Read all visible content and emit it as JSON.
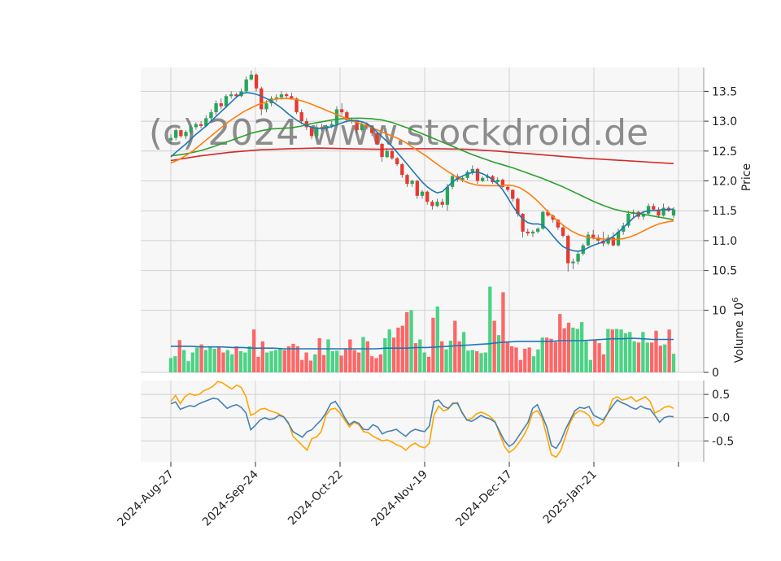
{
  "chart_data": {
    "type": "candlestick",
    "watermark": "(c) 2024 www.stockdroid.de",
    "x_tick_labels": [
      "2024-Aug-27",
      "2024-Sep-24",
      "2024-Oct-22",
      "2024-Nov-19",
      "2024-Dec-17",
      "2025-Jan-21"
    ],
    "price_panel": {
      "ylabel": "Price",
      "yticks": [
        "10.5",
        "11.0",
        "11.5",
        "12.0",
        "12.5",
        "13.0",
        "13.5"
      ],
      "ylim": [
        10.25,
        13.9
      ],
      "candles_ohlc": [
        [
          12.68,
          12.78,
          12.62,
          12.72
        ],
        [
          12.72,
          12.88,
          12.68,
          12.85
        ],
        [
          12.85,
          12.86,
          12.72,
          12.75
        ],
        [
          12.75,
          12.85,
          12.7,
          12.82
        ],
        [
          12.82,
          12.92,
          12.78,
          12.9
        ],
        [
          12.9,
          12.98,
          12.86,
          12.95
        ],
        [
          12.95,
          13.0,
          12.88,
          12.92
        ],
        [
          12.92,
          13.1,
          12.9,
          13.05
        ],
        [
          13.05,
          13.2,
          13.0,
          13.15
        ],
        [
          13.15,
          13.35,
          13.1,
          13.3
        ],
        [
          13.3,
          13.38,
          13.2,
          13.25
        ],
        [
          13.25,
          13.45,
          13.22,
          13.42
        ],
        [
          13.42,
          13.5,
          13.38,
          13.45
        ],
        [
          13.45,
          13.48,
          13.38,
          13.42
        ],
        [
          13.42,
          13.55,
          13.4,
          13.5
        ],
        [
          13.5,
          13.75,
          13.48,
          13.7
        ],
        [
          13.7,
          13.85,
          13.68,
          13.78
        ],
        [
          13.78,
          13.8,
          13.5,
          13.55
        ],
        [
          13.55,
          13.58,
          13.1,
          13.2
        ],
        [
          13.2,
          13.35,
          13.15,
          13.3
        ],
        [
          13.3,
          13.42,
          13.25,
          13.38
        ],
        [
          13.38,
          13.45,
          13.32,
          13.4
        ],
        [
          13.4,
          13.5,
          13.36,
          13.45
        ],
        [
          13.45,
          13.48,
          13.38,
          13.42
        ],
        [
          13.42,
          13.48,
          13.36,
          13.38
        ],
        [
          13.38,
          13.4,
          13.12,
          13.15
        ],
        [
          13.15,
          13.2,
          12.95,
          13.0
        ],
        [
          13.0,
          13.05,
          12.85,
          12.9
        ],
        [
          12.9,
          12.92,
          12.7,
          12.75
        ],
        [
          12.75,
          12.95,
          12.72,
          12.9
        ],
        [
          12.9,
          12.96,
          12.84,
          12.88
        ],
        [
          12.88,
          12.94,
          12.84,
          12.92
        ],
        [
          12.92,
          13.0,
          12.88,
          12.95
        ],
        [
          12.95,
          13.25,
          12.92,
          13.2
        ],
        [
          13.2,
          13.3,
          13.1,
          13.15
        ],
        [
          13.15,
          13.18,
          12.98,
          13.02
        ],
        [
          13.02,
          13.06,
          12.96,
          13.0
        ],
        [
          13.0,
          13.02,
          12.8,
          12.85
        ],
        [
          12.85,
          13.0,
          12.82,
          12.95
        ],
        [
          12.95,
          12.98,
          12.86,
          12.9
        ],
        [
          12.9,
          12.92,
          12.75,
          12.8
        ],
        [
          12.8,
          12.82,
          12.6,
          12.62
        ],
        [
          12.62,
          12.64,
          12.32,
          12.4
        ],
        [
          12.4,
          12.55,
          12.38,
          12.5
        ],
        [
          12.5,
          12.52,
          12.35,
          12.38
        ],
        [
          12.38,
          12.4,
          12.25,
          12.28
        ],
        [
          12.28,
          12.3,
          12.05,
          12.1
        ],
        [
          12.1,
          12.12,
          11.9,
          11.95
        ],
        [
          11.95,
          12.02,
          11.9,
          12.0
        ],
        [
          12.0,
          12.02,
          11.7,
          11.75
        ],
        [
          11.75,
          11.85,
          11.7,
          11.82
        ],
        [
          11.82,
          11.84,
          11.6,
          11.65
        ],
        [
          11.65,
          11.68,
          11.52,
          11.58
        ],
        [
          11.58,
          11.7,
          11.56,
          11.65
        ],
        [
          11.65,
          11.7,
          11.55,
          11.6
        ],
        [
          11.6,
          11.95,
          11.5,
          11.9
        ],
        [
          11.9,
          12.12,
          11.86,
          12.08
        ],
        [
          12.08,
          12.12,
          11.98,
          12.02
        ],
        [
          12.02,
          12.08,
          11.98,
          12.05
        ],
        [
          12.05,
          12.18,
          12.02,
          12.15
        ],
        [
          12.15,
          12.26,
          12.1,
          12.2
        ],
        [
          12.2,
          12.22,
          11.95,
          12.0
        ],
        [
          12.0,
          12.08,
          11.98,
          12.05
        ],
        [
          12.05,
          12.12,
          12.0,
          12.08
        ],
        [
          12.08,
          12.1,
          11.95,
          11.98
        ],
        [
          11.98,
          12.06,
          11.94,
          12.02
        ],
        [
          12.02,
          12.04,
          11.88,
          11.9
        ],
        [
          11.9,
          11.92,
          11.82,
          11.85
        ],
        [
          11.85,
          11.86,
          11.65,
          11.7
        ],
        [
          11.7,
          11.72,
          11.4,
          11.45
        ],
        [
          11.45,
          11.46,
          11.05,
          11.15
        ],
        [
          11.15,
          11.2,
          11.08,
          11.12
        ],
        [
          11.12,
          11.18,
          11.06,
          11.15
        ],
        [
          11.15,
          11.22,
          11.12,
          11.2
        ],
        [
          11.2,
          11.5,
          11.18,
          11.48
        ],
        [
          11.48,
          11.52,
          11.4,
          11.42
        ],
        [
          11.42,
          11.44,
          11.3,
          11.35
        ],
        [
          11.35,
          11.36,
          11.18,
          11.22
        ],
        [
          11.22,
          11.24,
          11.05,
          11.08
        ],
        [
          11.08,
          11.1,
          10.48,
          10.62
        ],
        [
          10.62,
          10.7,
          10.52,
          10.65
        ],
        [
          10.65,
          10.82,
          10.6,
          10.78
        ],
        [
          10.78,
          10.95,
          10.75,
          10.92
        ],
        [
          10.92,
          11.15,
          10.9,
          11.1
        ],
        [
          11.1,
          11.18,
          11.02,
          11.05
        ],
        [
          11.05,
          11.1,
          10.95,
          11.0
        ],
        [
          11.0,
          11.15,
          10.9,
          10.95
        ],
        [
          10.95,
          11.1,
          10.92,
          11.05
        ],
        [
          11.05,
          11.14,
          10.9,
          10.92
        ],
        [
          10.92,
          11.2,
          10.9,
          11.15
        ],
        [
          11.15,
          11.3,
          11.1,
          11.25
        ],
        [
          11.25,
          11.5,
          11.22,
          11.45
        ],
        [
          11.45,
          11.52,
          11.38,
          11.48
        ],
        [
          11.48,
          11.5,
          11.36,
          11.4
        ],
        [
          11.4,
          11.5,
          11.35,
          11.45
        ],
        [
          11.45,
          11.62,
          11.42,
          11.58
        ],
        [
          11.58,
          11.62,
          11.5,
          11.52
        ],
        [
          11.52,
          11.56,
          11.38,
          11.42
        ],
        [
          11.42,
          11.62,
          11.4,
          11.55
        ],
        [
          11.55,
          11.58,
          11.48,
          11.5
        ],
        [
          11.42,
          11.56,
          11.38,
          11.52
        ]
      ],
      "ma_short": [
        12.4,
        12.48,
        12.55,
        12.62,
        12.7,
        12.78,
        12.85,
        12.92,
        13.0,
        13.08,
        13.16,
        13.24,
        13.32,
        13.4,
        13.46,
        13.48,
        13.47,
        13.45,
        13.42,
        13.38,
        13.34,
        13.28,
        13.22,
        13.15,
        13.08,
        13.02,
        12.97,
        12.93,
        12.9,
        12.88,
        12.88,
        12.89,
        12.91,
        12.94,
        12.97,
        13.0,
        13.01,
        13.01,
        12.99,
        12.96,
        12.9,
        12.82,
        12.74,
        12.66,
        12.58,
        12.48,
        12.38,
        12.28,
        12.18,
        12.08,
        11.98,
        11.9,
        11.84,
        11.8,
        11.82,
        11.9,
        11.98,
        12.04,
        12.08,
        12.12,
        12.14,
        12.15,
        12.12,
        12.08,
        12.02,
        11.95,
        11.85,
        11.72,
        11.58,
        11.46,
        11.36,
        11.3,
        11.28,
        11.28,
        11.26,
        11.18,
        11.08,
        10.98,
        10.9,
        10.86,
        10.83,
        10.82,
        10.84,
        10.88,
        10.92,
        10.95,
        10.98,
        11.02,
        11.07,
        11.14,
        11.22,
        11.3,
        11.38,
        11.44,
        11.48,
        11.5,
        11.5,
        11.51,
        11.52,
        11.52,
        11.53
      ],
      "ma_medium": [
        12.3,
        12.35,
        12.42,
        12.5,
        12.6,
        12.7,
        12.8,
        12.9,
        13.0,
        13.08,
        13.16,
        13.22,
        13.28,
        13.32,
        13.36,
        13.38,
        13.38,
        13.37,
        13.34,
        13.3,
        13.25,
        13.2,
        13.15,
        13.1,
        13.05,
        13.0,
        12.96,
        12.92,
        12.87,
        12.82,
        12.77,
        12.72,
        12.66,
        12.58,
        12.5,
        12.42,
        12.33,
        12.24,
        12.16,
        12.08,
        12.01,
        11.96,
        11.93,
        11.92,
        11.92,
        11.92,
        11.93,
        11.92,
        11.88,
        11.8,
        11.7,
        11.58,
        11.45,
        11.34,
        11.24,
        11.16,
        11.1,
        11.06,
        11.04,
        11.03,
        11.02,
        11.02,
        11.03,
        11.06,
        11.11,
        11.17,
        11.23,
        11.28,
        11.31,
        11.33
      ],
      "ma_medium_start_index": 30,
      "ma_long": [
        12.42,
        12.44,
        12.47,
        12.51,
        12.56,
        12.62,
        12.68,
        12.74,
        12.8,
        12.84,
        12.87,
        12.88,
        12.89,
        12.92,
        12.96,
        12.99,
        13.02,
        13.04,
        13.05,
        13.05,
        13.04,
        13.02,
        12.98,
        12.92,
        12.86,
        12.79,
        12.72,
        12.65,
        12.58,
        12.51,
        12.44,
        12.38,
        12.32,
        12.27,
        12.22,
        12.16,
        12.1,
        12.04,
        11.97,
        11.9,
        11.82,
        11.74,
        11.66,
        11.59,
        11.53,
        11.49,
        11.46,
        11.44,
        11.41,
        11.38,
        11.35
      ],
      "ma_long_start_index": 0,
      "ma_longest": [
        12.34,
        12.42,
        12.48,
        12.52,
        12.54,
        12.55,
        12.54,
        12.53,
        12.54,
        12.54,
        12.53,
        12.5,
        12.46,
        12.42,
        12.38,
        12.35,
        12.32,
        12.29
      ],
      "series_colors": {
        "up": "#26a65b",
        "down": "#e8392f",
        "ma_short": "#1f77b4",
        "ma_medium": "#ff7f0e",
        "ma_long": "#2ca02c",
        "ma_longest": "#d62728"
      }
    },
    "volume_panel": {
      "ylabel": "Volume  10^6",
      "ylabel_main": "Volume",
      "ylabel_exp": "6",
      "yticks": [
        "0",
        "10"
      ],
      "ylim": [
        0,
        14
      ],
      "volumes": [
        2.3,
        2.6,
        5.2,
        3.6,
        1.8,
        3.2,
        4.0,
        4.5,
        3.6,
        4.2,
        3.8,
        4.2,
        3.2,
        3.6,
        2.9,
        4.2,
        3.4,
        3.2,
        4.2,
        6.9,
        2.5,
        5.0,
        3.2,
        3.4,
        3.6,
        3.8,
        3.6,
        4.2,
        4.6,
        4.2,
        2.0,
        3.2,
        1.9,
        2.9,
        5.5,
        2.8,
        5.3,
        3.4,
        3.5,
        2.7,
        3.7,
        5.3,
        3.6,
        3.2,
        5.7,
        5.0,
        2.6,
        2.3,
        2.9,
        5.5,
        6.9,
        5.6,
        7.2,
        7.5,
        9.7,
        10.0,
        4.7,
        5.3,
        3.2,
        2.5,
        8.8,
        10.6,
        5.0,
        3.7,
        5.1,
        8.3,
        5.0,
        6.5,
        3.5,
        3.6,
        3.4,
        3.1,
        3.2,
        13.8,
        8.3,
        6.0,
        12.9,
        5.0,
        4.2,
        4.0,
        2.0,
        3.8,
        4.0,
        2.6,
        3.7,
        5.6,
        5.6,
        5.4,
        4.9,
        9.4,
        7.1,
        8.0,
        7.2,
        7.0,
        8.1,
        5.0,
        2.0,
        5.3,
        4.7,
        2.9,
        7.0,
        6.9,
        7.0,
        6.9,
        6.3,
        6.5,
        5.0,
        4.8,
        6.5,
        4.8,
        4.8,
        6.7,
        4.3,
        4.5,
        6.9,
        3.0
      ],
      "volume_ma": [
        4.2,
        4.2,
        4.2,
        4.1,
        4.1,
        4.1,
        4.0,
        4.0,
        3.9,
        3.9,
        3.9,
        3.8,
        3.8,
        3.8,
        3.8,
        3.8,
        3.8,
        3.8,
        3.8,
        3.8,
        3.8,
        3.9,
        3.9,
        3.9,
        4.0,
        4.0,
        4.1,
        4.2,
        4.3,
        4.4,
        4.5,
        4.6,
        4.8,
        4.9,
        5.0,
        5.0,
        5.0,
        5.0,
        5.1,
        5.1,
        5.1,
        5.2,
        5.3,
        5.4,
        5.4,
        5.5,
        5.4,
        5.3,
        5.3,
        5.3
      ]
    },
    "oscillator_panel": {
      "yticks": [
        "-0.5",
        "0.0",
        "0.5"
      ],
      "ylim": [
        -0.95,
        0.8
      ],
      "line_blue": [
        0.3,
        0.34,
        0.18,
        0.22,
        0.26,
        0.24,
        0.3,
        0.34,
        0.38,
        0.42,
        0.4,
        0.3,
        0.2,
        0.25,
        0.28,
        0.22,
        0.1,
        -0.26,
        -0.16,
        -0.05,
        0.0,
        -0.04,
        -0.02,
        0.05,
        0.02,
        -0.12,
        -0.3,
        -0.36,
        -0.42,
        -0.3,
        -0.26,
        -0.15,
        -0.05,
        0.1,
        0.3,
        0.35,
        0.2,
        0.0,
        -0.15,
        -0.08,
        -0.12,
        -0.25,
        -0.26,
        -0.15,
        -0.2,
        -0.35,
        -0.3,
        -0.28,
        -0.25,
        -0.33,
        -0.4,
        -0.3,
        -0.25,
        -0.28,
        -0.3,
        -0.18,
        0.35,
        0.38,
        0.25,
        0.2,
        0.3,
        0.32,
        0.1,
        -0.05,
        -0.08,
        -0.02,
        0.05,
        0.0,
        -0.03,
        -0.1,
        -0.3,
        -0.5,
        -0.62,
        -0.55,
        -0.4,
        -0.25,
        -0.1,
        0.2,
        0.28,
        0.05,
        -0.2,
        -0.6,
        -0.66,
        -0.5,
        -0.25,
        -0.05,
        0.15,
        0.22,
        0.2,
        0.24,
        0.05,
        0.0,
        -0.05,
        0.1,
        0.25,
        0.38,
        0.32,
        0.28,
        0.22,
        0.18,
        0.25,
        0.2,
        0.18,
        0.05,
        -0.1,
        0.0,
        0.03,
        0.02
      ],
      "line_orange": [
        0.35,
        0.48,
        0.3,
        0.45,
        0.52,
        0.48,
        0.5,
        0.58,
        0.62,
        0.68,
        0.78,
        0.75,
        0.68,
        0.62,
        0.7,
        0.65,
        0.45,
        0.05,
        0.1,
        0.18,
        0.2,
        0.15,
        0.12,
        0.08,
        0.02,
        -0.1,
        -0.4,
        -0.5,
        -0.6,
        -0.7,
        -0.45,
        -0.42,
        -0.3,
        0.05,
        0.18,
        0.2,
        0.1,
        -0.05,
        -0.2,
        -0.1,
        -0.15,
        -0.3,
        -0.32,
        -0.4,
        -0.45,
        -0.5,
        -0.48,
        -0.52,
        -0.58,
        -0.62,
        -0.7,
        -0.6,
        -0.55,
        -0.62,
        -0.65,
        -0.55,
        0.05,
        0.25,
        0.15,
        0.18,
        0.32,
        0.3,
        0.12,
        -0.05,
        -0.02,
        0.08,
        0.12,
        0.08,
        0.02,
        -0.08,
        -0.35,
        -0.62,
        -0.75,
        -0.68,
        -0.55,
        -0.4,
        -0.2,
        0.1,
        0.15,
        0.0,
        -0.4,
        -0.8,
        -0.85,
        -0.7,
        -0.4,
        -0.1,
        0.08,
        0.15,
        0.12,
        0.05,
        -0.15,
        -0.18,
        -0.1,
        0.1,
        0.4,
        0.45,
        0.38,
        0.4,
        0.45,
        0.35,
        0.4,
        0.45,
        0.35,
        0.1,
        0.15,
        0.22,
        0.25,
        0.2
      ],
      "colors": {
        "blue": "#4682b4",
        "orange": "#ffa500"
      }
    }
  }
}
